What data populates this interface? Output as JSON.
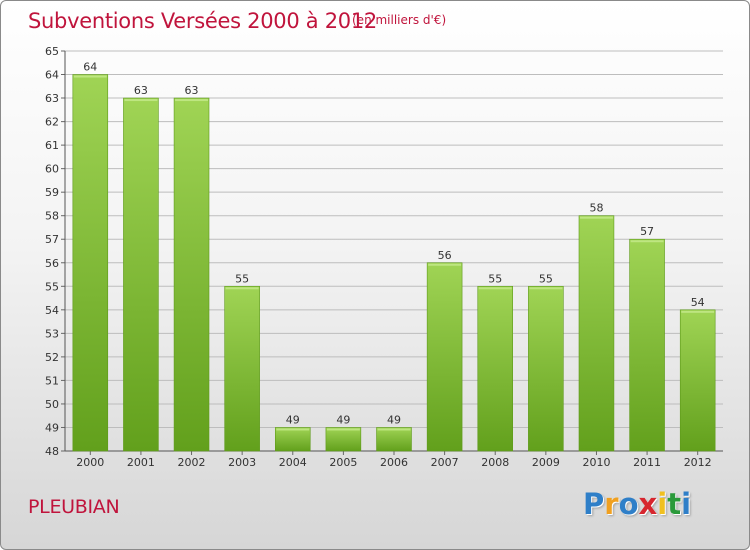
{
  "title": "Subventions Versées 2000 à 2012",
  "subtitle": "(en milliers d'€)",
  "commune": "PLEUBIAN",
  "logo": {
    "text": "Proxiti",
    "letters": [
      "P",
      "r",
      "o",
      "x",
      "i",
      "t",
      "i"
    ],
    "colors": [
      "#2f7fc8",
      "#f0a020",
      "#2f7fc8",
      "#d7262e",
      "#f0c020",
      "#2a9a3a",
      "#2f7fc8"
    ]
  },
  "colors": {
    "title": "#c0143c",
    "bar_light": "#a0d455",
    "bar_dark": "#62a01c",
    "grid": "#bdbdbd"
  },
  "chart_data": {
    "type": "bar",
    "categories": [
      "2000",
      "2001",
      "2002",
      "2003",
      "2004",
      "2005",
      "2006",
      "2007",
      "2008",
      "2009",
      "2010",
      "2011",
      "2012"
    ],
    "values": [
      64,
      63,
      63,
      55,
      49,
      49,
      49,
      56,
      55,
      55,
      58,
      57,
      54
    ],
    "ylim": [
      48,
      65
    ],
    "yticks": [
      48,
      49,
      50,
      51,
      52,
      53,
      54,
      55,
      56,
      57,
      58,
      59,
      60,
      61,
      62,
      63,
      64,
      65
    ],
    "grid": true,
    "data_labels": true
  }
}
